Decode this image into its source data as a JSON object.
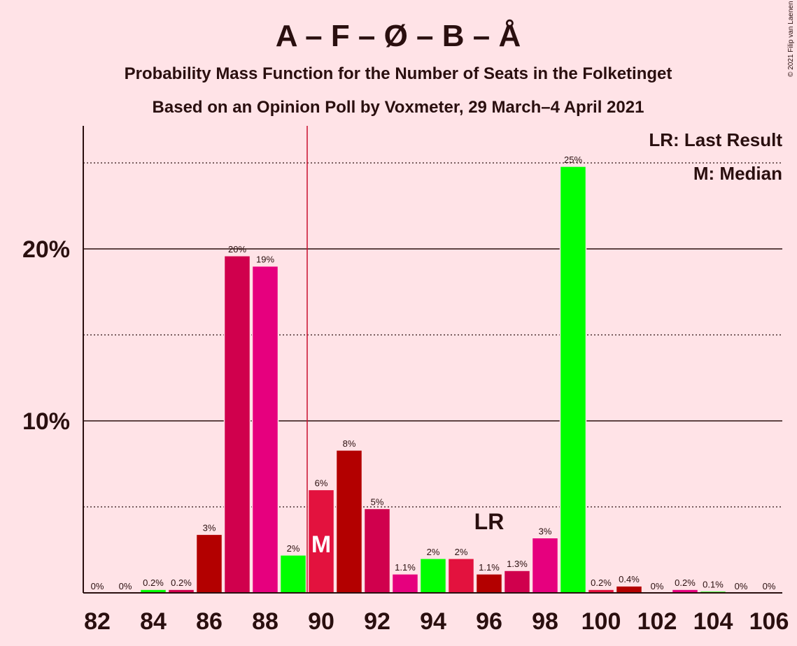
{
  "header": {
    "title": "A – F – Ø – B – Å",
    "subtitle1": "Probability Mass Function for the Number of Seats in the Folketinget",
    "subtitle2": "Based on an Opinion Poll by Voxmeter, 29 March–4 April 2021",
    "copyright": "© 2021 Filip van Laenen"
  },
  "legend": {
    "lr": "LR: Last Result",
    "m": "M: Median",
    "lr_marker": "LR",
    "m_marker": "M"
  },
  "chart_data": {
    "type": "bar",
    "x": [
      82,
      83,
      84,
      85,
      86,
      87,
      88,
      89,
      90,
      91,
      92,
      93,
      94,
      95,
      96,
      97,
      98,
      99,
      100,
      101,
      102,
      103,
      104,
      105,
      106
    ],
    "values": [
      0,
      0,
      0.2,
      0.2,
      3.4,
      19.6,
      19.0,
      2.2,
      6.0,
      8.3,
      4.9,
      1.1,
      2.0,
      2.0,
      1.1,
      1.3,
      3.2,
      24.8,
      0.2,
      0.4,
      0,
      0.2,
      0.1,
      0,
      0
    ],
    "labels": [
      "0%",
      "0%",
      "0.2%",
      "0.2%",
      "3%",
      "20%",
      "19%",
      "2%",
      "6%",
      "8%",
      "5%",
      "1.1%",
      "2%",
      "2%",
      "1.1%",
      "1.3%",
      "3%",
      "25%",
      "0.2%",
      "0.4%",
      "0%",
      "0.2%",
      "0.1%",
      "0%",
      "0%"
    ],
    "colors": [
      "#E9002A",
      "#E9002A",
      "#00FF00",
      "#D0004D",
      "#B30000",
      "#D0004D",
      "#E6007E",
      "#00FF00",
      "#E3123E",
      "#B30000",
      "#D0004D",
      "#E6007E",
      "#00FF00",
      "#E3123E",
      "#B30000",
      "#D0004D",
      "#E6007E",
      "#00FF00",
      "#E3123E",
      "#B30000",
      "#D0004D",
      "#E6007E",
      "#00FF00",
      "#E3123E",
      "#B30000"
    ],
    "x_ticks": [
      "82",
      "84",
      "86",
      "88",
      "90",
      "92",
      "94",
      "96",
      "98",
      "100",
      "102",
      "104",
      "106"
    ],
    "y_ticks": [
      "10%",
      "20%"
    ],
    "ylim": [
      0,
      27
    ],
    "median": 90,
    "last_result": 96,
    "grid": true,
    "legend_position": "top-right"
  }
}
